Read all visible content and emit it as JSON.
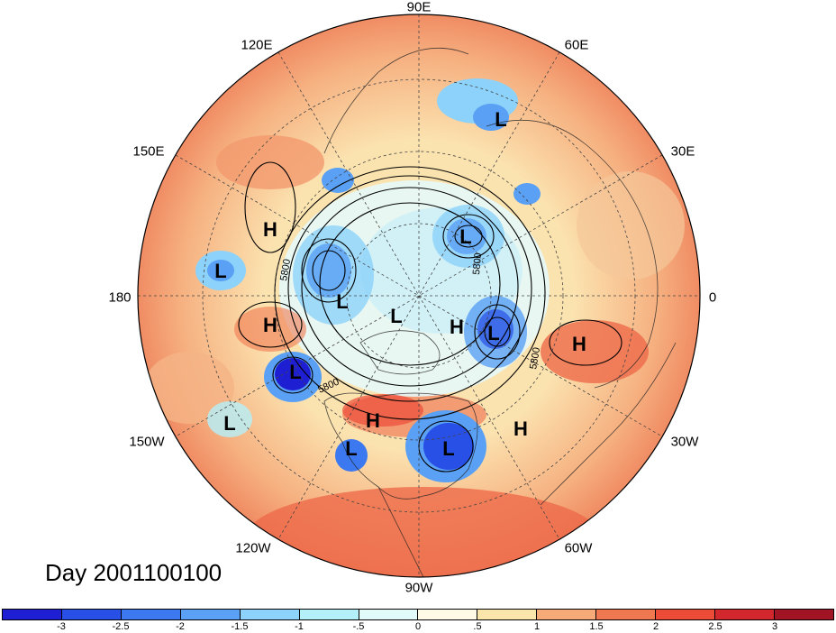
{
  "title": "Day 2001100100",
  "lon_labels": {
    "top": "90E",
    "right": "0",
    "left": "180",
    "bottom": "90W",
    "ur": "60E",
    "ul": "120E",
    "ur2": "30E",
    "ul2": "150E",
    "lr": "30W",
    "ll": "150W",
    "lr2": "60W",
    "ll2": "120W"
  },
  "contour_labels": [
    "5800",
    "5800",
    "5800",
    "5800"
  ],
  "pressure_centers": [
    {
      "t": "L"
    },
    {
      "t": "H"
    },
    {
      "t": "L"
    },
    {
      "t": "L"
    },
    {
      "t": "L"
    },
    {
      "t": "L"
    },
    {
      "t": "H"
    },
    {
      "t": "L"
    },
    {
      "t": "H"
    },
    {
      "t": "L"
    },
    {
      "t": "H"
    },
    {
      "t": "H"
    },
    {
      "t": "L"
    },
    {
      "t": "H"
    },
    {
      "t": "L"
    },
    {
      "t": "L"
    }
  ],
  "colorbar": {
    "colors": [
      "#1e1ed2",
      "#2850e6",
      "#3c78f0",
      "#5aa0f5",
      "#8cd2fa",
      "#b4f0fa",
      "#e1fafa",
      "#fffae6",
      "#fae6aa",
      "#f5aa78",
      "#f07850",
      "#eb4b37",
      "#d2282d",
      "#a01423"
    ],
    "labels": [
      "-3",
      "-2.5",
      "-2",
      "-1.5",
      "-1",
      "-.5",
      "0",
      ".5",
      "1",
      "1.5",
      "2",
      "2.5",
      "3"
    ]
  }
}
